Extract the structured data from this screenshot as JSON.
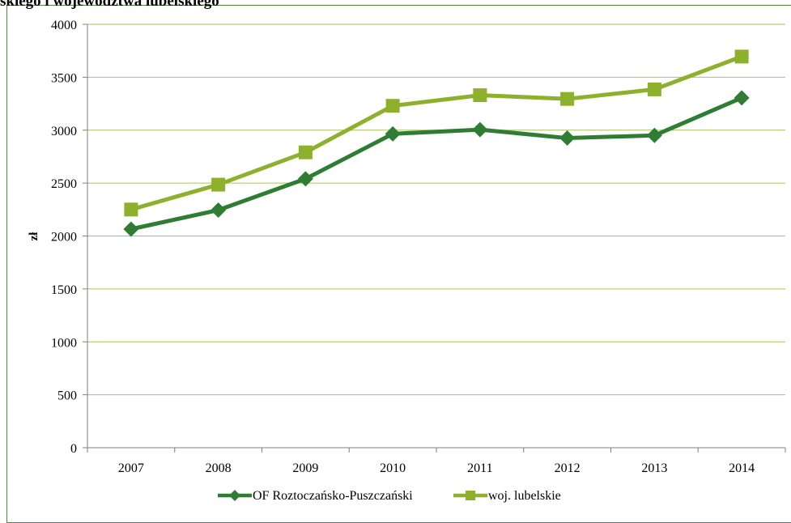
{
  "page": {
    "cut_title": "skiego i województwa lubelskiego"
  },
  "colors": {
    "series1": "#2e7d32",
    "series2": "#8db12c",
    "grid": "#a9c25a",
    "frame": "#4e8a3e"
  },
  "chart_data": {
    "type": "line",
    "title": "",
    "xlabel": "",
    "ylabel": "zł",
    "ylim": [
      0,
      4000
    ],
    "yticks": [
      0,
      500,
      1000,
      1500,
      2000,
      2500,
      3000,
      3500,
      4000
    ],
    "grid": true,
    "legend_position": "bottom",
    "categories": [
      "2007",
      "2008",
      "2009",
      "2010",
      "2011",
      "2012",
      "2013",
      "2014"
    ],
    "series": [
      {
        "name": "OF Roztoczańsko-Puszczański",
        "marker": "diamond",
        "color": "#2e7d32",
        "values": [
          2065,
          2245,
          2540,
          2965,
          3005,
          2925,
          2950,
          3305
        ]
      },
      {
        "name": "woj. lubelskie",
        "marker": "square",
        "color": "#8db12c",
        "values": [
          2250,
          2485,
          2790,
          3230,
          3330,
          3295,
          3385,
          3695
        ]
      }
    ]
  }
}
